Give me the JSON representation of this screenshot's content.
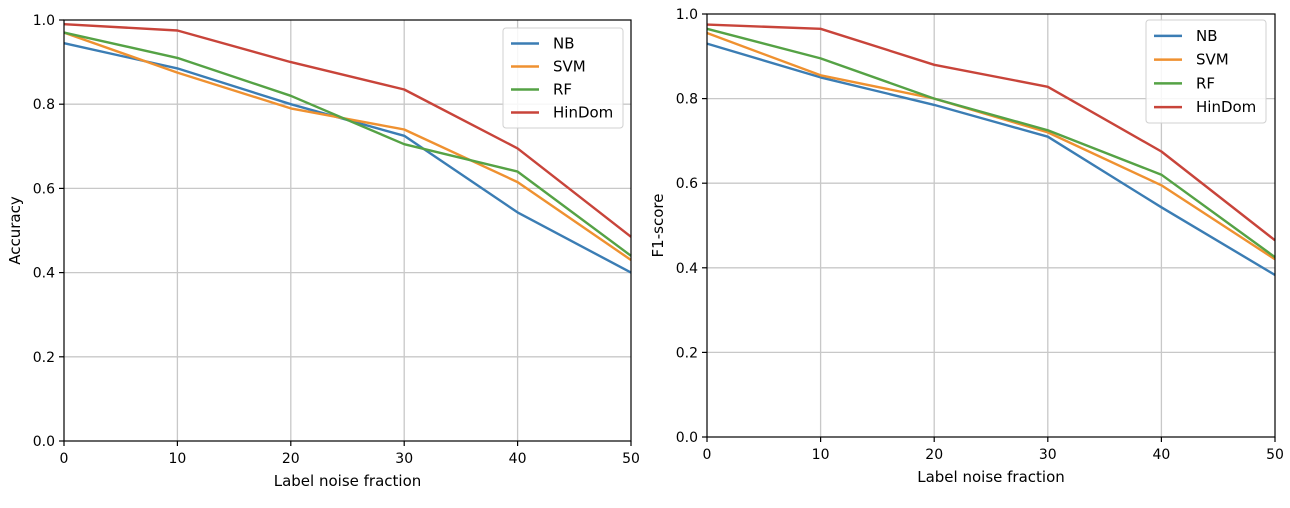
{
  "chart_data": [
    {
      "type": "line",
      "title": "",
      "xlabel": "Label noise fraction",
      "ylabel": "Accuracy",
      "x": [
        0,
        10,
        20,
        30,
        40,
        50
      ],
      "xticks": [
        "0",
        "10",
        "20",
        "30",
        "40",
        "50"
      ],
      "yticks": [
        "0.0",
        "0.2",
        "0.4",
        "0.6",
        "0.8",
        "1.0"
      ],
      "xlim": [
        0,
        50
      ],
      "ylim": [
        0,
        1.0
      ],
      "grid": true,
      "legend_position": "upper-right",
      "series": [
        {
          "name": "NB",
          "color": "#3b7db4",
          "values": [
            0.945,
            0.885,
            0.8,
            0.725,
            0.543,
            0.4
          ]
        },
        {
          "name": "SVM",
          "color": "#ef9130",
          "values": [
            0.97,
            0.875,
            0.79,
            0.74,
            0.615,
            0.43
          ]
        },
        {
          "name": "RF",
          "color": "#55a245",
          "values": [
            0.97,
            0.91,
            0.82,
            0.705,
            0.64,
            0.44
          ]
        },
        {
          "name": "HinDom",
          "color": "#c8443a",
          "values": [
            0.99,
            0.975,
            0.9,
            0.835,
            0.695,
            0.485
          ]
        }
      ]
    },
    {
      "type": "line",
      "title": "",
      "xlabel": "Label noise fraction",
      "ylabel": "F1-score",
      "x": [
        0,
        10,
        20,
        30,
        40,
        50
      ],
      "xticks": [
        "0",
        "10",
        "20",
        "30",
        "40",
        "50"
      ],
      "yticks": [
        "0.0",
        "0.2",
        "0.4",
        "0.6",
        "0.8",
        "1.0"
      ],
      "xlim": [
        0,
        50
      ],
      "ylim": [
        0,
        1.0
      ],
      "grid": true,
      "legend_position": "upper-right",
      "series": [
        {
          "name": "NB",
          "color": "#3b7db4",
          "values": [
            0.93,
            0.85,
            0.785,
            0.71,
            0.543,
            0.383
          ]
        },
        {
          "name": "SVM",
          "color": "#ef9130",
          "values": [
            0.955,
            0.855,
            0.8,
            0.72,
            0.595,
            0.42
          ]
        },
        {
          "name": "RF",
          "color": "#55a245",
          "values": [
            0.965,
            0.895,
            0.8,
            0.725,
            0.62,
            0.425
          ]
        },
        {
          "name": "HinDom",
          "color": "#c8443a",
          "values": [
            0.975,
            0.965,
            0.88,
            0.828,
            0.675,
            0.465
          ]
        }
      ]
    }
  ]
}
